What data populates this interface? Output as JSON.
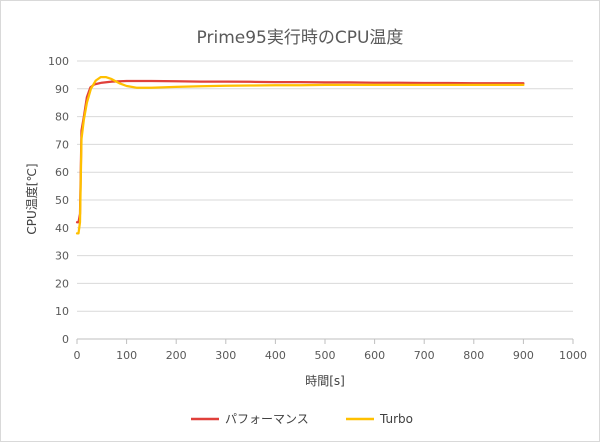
{
  "chart_data": {
    "type": "line",
    "title": "Prime95実行時のCPU温度",
    "xlabel": "時間[s]",
    "ylabel": "CPU温度[℃]",
    "xlim": [
      0,
      1000
    ],
    "ylim": [
      0,
      100
    ],
    "xticks": [
      "0",
      "100",
      "200",
      "300",
      "400",
      "500",
      "600",
      "700",
      "800",
      "900",
      "1000"
    ],
    "yticks": [
      "0",
      "10",
      "20",
      "30",
      "40",
      "50",
      "60",
      "70",
      "80",
      "90",
      "100"
    ],
    "grid": "horizontal",
    "legend_position": "bottom",
    "series": [
      {
        "name": "パフォーマンス",
        "color": "#e0403a",
        "points": [
          [
            0,
            42
          ],
          [
            3,
            42
          ],
          [
            6,
            45
          ],
          [
            9,
            75
          ],
          [
            14,
            80
          ],
          [
            20,
            87
          ],
          [
            27,
            90.5
          ],
          [
            35,
            91.6
          ],
          [
            50,
            92.2
          ],
          [
            70,
            92.6
          ],
          [
            100,
            92.8
          ],
          [
            150,
            92.8
          ],
          [
            200,
            92.7
          ],
          [
            250,
            92.6
          ],
          [
            300,
            92.6
          ],
          [
            350,
            92.5
          ],
          [
            400,
            92.4
          ],
          [
            450,
            92.4
          ],
          [
            500,
            92.3
          ],
          [
            550,
            92.3
          ],
          [
            600,
            92.2
          ],
          [
            650,
            92.2
          ],
          [
            700,
            92.1
          ],
          [
            750,
            92.1
          ],
          [
            800,
            92.0
          ],
          [
            850,
            92.0
          ],
          [
            900,
            92.0
          ]
        ]
      },
      {
        "name": "Turbo",
        "color": "#ffc000",
        "points": [
          [
            0,
            38
          ],
          [
            3,
            38
          ],
          [
            6,
            42
          ],
          [
            9,
            72
          ],
          [
            14,
            79
          ],
          [
            20,
            85
          ],
          [
            28,
            90
          ],
          [
            38,
            93
          ],
          [
            48,
            94.2
          ],
          [
            58,
            94.2
          ],
          [
            70,
            93.5
          ],
          [
            85,
            92
          ],
          [
            100,
            91
          ],
          [
            120,
            90.4
          ],
          [
            150,
            90.4
          ],
          [
            200,
            90.7
          ],
          [
            250,
            90.9
          ],
          [
            300,
            91.1
          ],
          [
            350,
            91.2
          ],
          [
            400,
            91.3
          ],
          [
            450,
            91.3
          ],
          [
            500,
            91.4
          ],
          [
            550,
            91.4
          ],
          [
            600,
            91.4
          ],
          [
            650,
            91.4
          ],
          [
            700,
            91.4
          ],
          [
            750,
            91.4
          ],
          [
            800,
            91.4
          ],
          [
            850,
            91.4
          ],
          [
            900,
            91.4
          ]
        ]
      }
    ]
  }
}
